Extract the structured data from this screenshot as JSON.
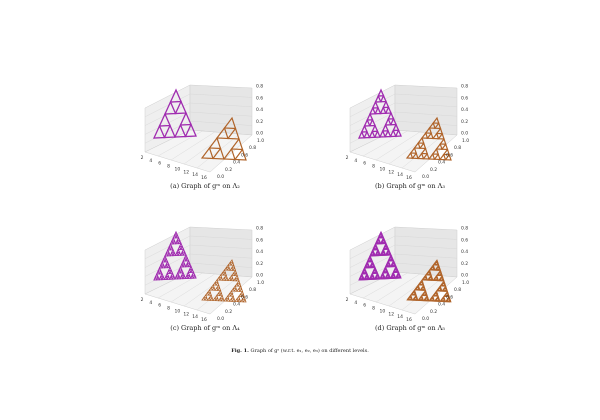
{
  "figure": {
    "panels": [
      {
        "caption": "(a) Graph of gᵐ on Λ₂"
      },
      {
        "caption": "(b) Graph of gᵐ on Λ₃"
      },
      {
        "caption": "(c) Graph of gᵐ on Λ₄"
      },
      {
        "caption": "(d) Graph of gᵐ on Λ₅"
      }
    ],
    "x_ticks": [
      "2",
      "4",
      "6",
      "8",
      "10",
      "12",
      "14",
      "16"
    ],
    "y_ticks": [
      "0.0",
      "0.2",
      "0.4",
      "0.6",
      "0.8",
      "1.0"
    ],
    "z_ticks": [
      "0.0",
      "0.2",
      "0.4",
      "0.6",
      "0.8"
    ],
    "caption": {
      "label": "Fig. 1.",
      "text": "Graph of gˢ (w.r.t. e₁, e₂, e₃) on different levels."
    }
  }
}
